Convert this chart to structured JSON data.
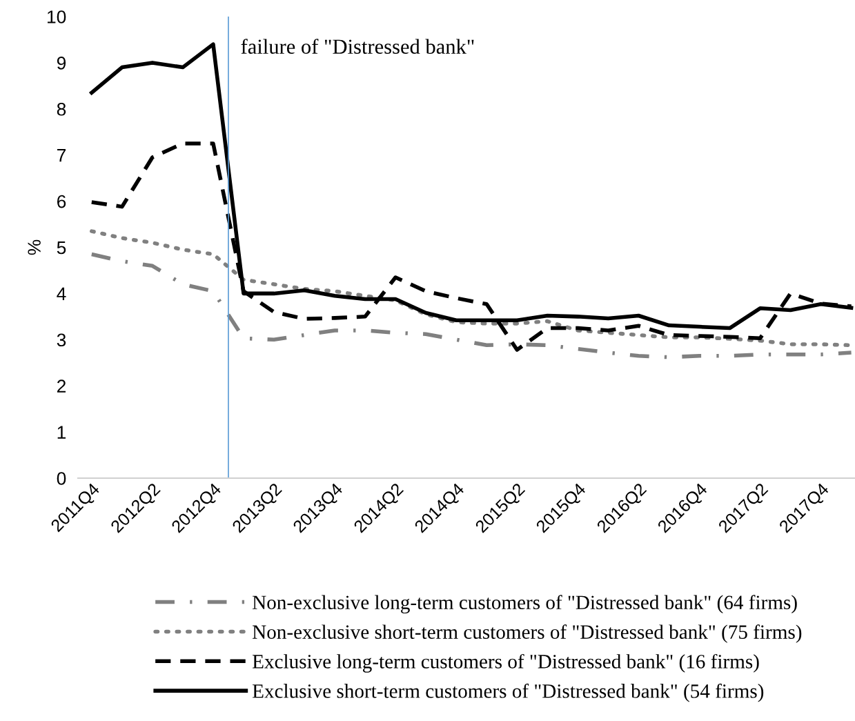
{
  "chart_data": {
    "type": "line",
    "ylabel": "%",
    "categories": [
      "2011Q4",
      null,
      "2012Q2",
      null,
      "2012Q4",
      null,
      "2013Q2",
      null,
      "2013Q4",
      null,
      "2014Q2",
      null,
      "2014Q4",
      null,
      "2015Q2",
      null,
      "2015Q4",
      null,
      "2016Q2",
      null,
      "2016Q4",
      null,
      "2017Q2",
      null,
      "2017Q4",
      null
    ],
    "series": [
      {
        "name": "Non-exclusive long-term customers of \"Distressed bank\" (64 firms)",
        "color": "#808080",
        "line_style": "dashdot",
        "values": [
          4.85,
          4.7,
          4.6,
          4.2,
          4.05,
          3.03,
          3.0,
          3.1,
          3.2,
          3.2,
          3.15,
          3.12,
          3.0,
          2.88,
          2.9,
          2.88,
          2.8,
          2.72,
          2.65,
          2.62,
          2.65,
          2.65,
          2.68,
          2.68,
          2.68,
          2.72
        ]
      },
      {
        "name": "Non-exclusive short-term customers of \"Distressed bank\" (75 firms)",
        "color": "#808080",
        "line_style": "dotted",
        "values": [
          5.35,
          5.2,
          5.1,
          4.95,
          4.85,
          4.3,
          4.2,
          4.1,
          4.05,
          3.95,
          3.85,
          3.55,
          3.38,
          3.35,
          3.35,
          3.4,
          3.2,
          3.15,
          3.1,
          3.05,
          3.05,
          3.02,
          2.98,
          2.9,
          2.9,
          2.88
        ]
      },
      {
        "name": "Exclusive long-term customers of \"Distressed bank\" (16 firms)",
        "color": "#000000",
        "line_style": "dashed",
        "values": [
          5.98,
          5.88,
          6.95,
          7.25,
          7.25,
          4.05,
          3.6,
          3.45,
          3.47,
          3.5,
          4.35,
          4.05,
          3.9,
          3.77,
          2.78,
          3.25,
          3.25,
          3.2,
          3.3,
          3.1,
          3.08,
          3.06,
          3.03,
          4.0,
          3.78,
          3.72
        ]
      },
      {
        "name": "Exclusive short-term customers of \"Distressed bank\" (54 firms)",
        "color": "#000000",
        "line_style": "solid",
        "values": [
          8.35,
          8.9,
          9.0,
          8.9,
          9.4,
          4.0,
          4.0,
          4.07,
          3.95,
          3.88,
          3.88,
          3.58,
          3.42,
          3.42,
          3.42,
          3.52,
          3.5,
          3.46,
          3.52,
          3.31,
          3.28,
          3.25,
          3.68,
          3.64,
          3.77,
          3.69
        ]
      }
    ],
    "ylim": [
      0,
      10
    ],
    "yticks": [
      0,
      1,
      2,
      3,
      4,
      5,
      6,
      7,
      8,
      9,
      10
    ],
    "grid": false,
    "legend": "bottom",
    "marker": "none",
    "annotations": [
      "failure of \"Distressed bank\""
    ]
  }
}
